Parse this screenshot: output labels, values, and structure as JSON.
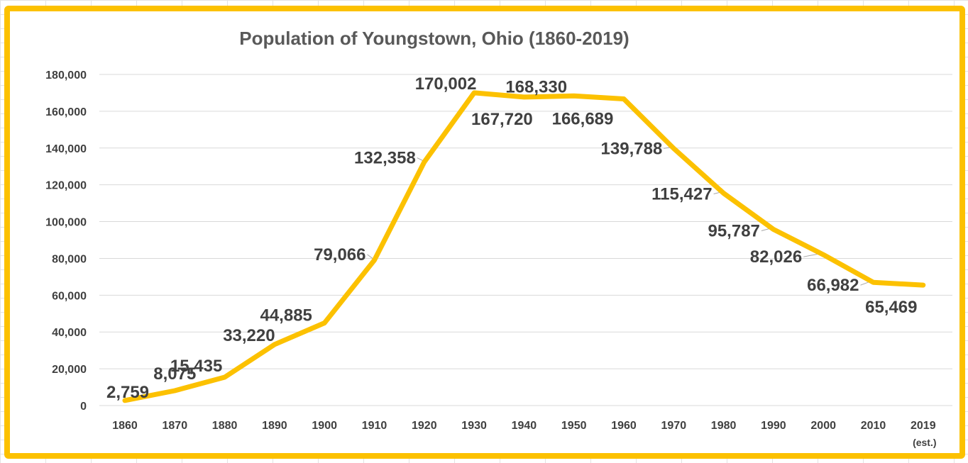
{
  "chart_data": {
    "type": "line",
    "title": "Population of Youngstown, Ohio (1860-2019)",
    "xlabel": "",
    "ylabel": "",
    "ylim": [
      0,
      180000
    ],
    "y_ticks": [
      0,
      20000,
      40000,
      60000,
      80000,
      100000,
      120000,
      140000,
      160000,
      180000
    ],
    "y_tick_labels": [
      "0",
      "20,000",
      "40,000",
      "60,000",
      "80,000",
      "100,000",
      "120,000",
      "140,000",
      "160,000",
      "180,000"
    ],
    "grid": true,
    "legend": "none",
    "categories": [
      "1860",
      "1870",
      "1880",
      "1890",
      "1900",
      "1910",
      "1920",
      "1930",
      "1940",
      "1950",
      "1960",
      "1970",
      "1980",
      "1990",
      "2000",
      "2010",
      "2019"
    ],
    "category_sublabels": [
      "",
      "",
      "",
      "",
      "",
      "",
      "",
      "",
      "",
      "",
      "",
      "",
      "",
      "",
      "",
      "",
      "(est.)"
    ],
    "series": [
      {
        "name": "Population",
        "color": "#fcc100",
        "values": [
          2759,
          8075,
          15435,
          33220,
          44885,
          79066,
          132358,
          170002,
          167720,
          168330,
          166689,
          139788,
          115427,
          95787,
          82026,
          66982,
          65469
        ],
        "labels": [
          "2,759",
          "8,075",
          "15,435",
          "33,220",
          "44,885",
          "79,066",
          "132,358",
          "170,002",
          "167,720",
          "168,330",
          "166,689",
          "139,788",
          "115,427",
          "95,787",
          "82,026",
          "66,982",
          "65,469"
        ]
      }
    ]
  },
  "style": {
    "frame_color": "#fcc100",
    "line_color": "#fcc100",
    "text_color": "#404040",
    "title_color": "#595959"
  }
}
